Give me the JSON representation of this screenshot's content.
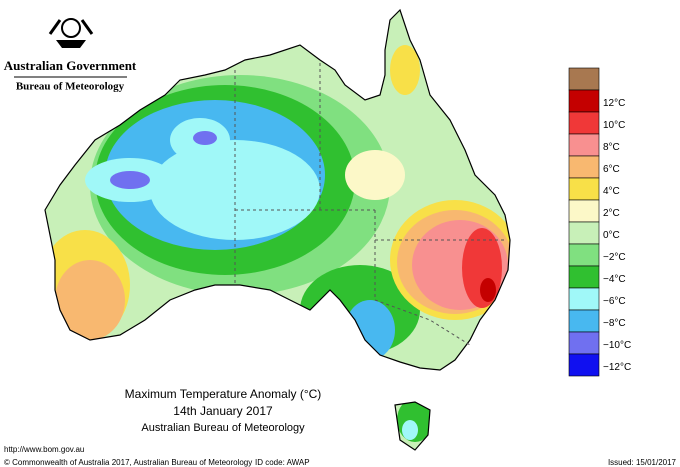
{
  "header": {
    "government": "Australian Government",
    "bureau": "Bureau of Meteorology"
  },
  "title": {
    "line1": "Maximum Temperature Anomaly (°C)",
    "line2": "14th January 2017",
    "line3": "Australian Bureau of Meteorology"
  },
  "legend": {
    "items": [
      {
        "color": "#a87850",
        "label": null
      },
      {
        "color": "#c40000",
        "label": "12°C"
      },
      {
        "color": "#f03838",
        "label": "10°C"
      },
      {
        "color": "#f89090",
        "label": "8°C"
      },
      {
        "color": "#f8b870",
        "label": "6°C"
      },
      {
        "color": "#f8e048",
        "label": "4°C"
      },
      {
        "color": "#fcf8c8",
        "label": "2°C"
      },
      {
        "color": "#c8f0b8",
        "label": "0°C"
      },
      {
        "color": "#80e080",
        "label": "−2°C"
      },
      {
        "color": "#30c030",
        "label": "−4°C"
      },
      {
        "color": "#a0f8f8",
        "label": "−6°C"
      },
      {
        "color": "#48b8f0",
        "label": "−8°C"
      },
      {
        "color": "#7070f0",
        "label": "−10°C"
      },
      {
        "color": "#1010f0",
        "label": "−12°C"
      }
    ]
  },
  "footer": {
    "url": "http://www.bom.gov.au",
    "copyright": "© Commonwealth of Australia 2017, Australian Bureau of Meteorology",
    "id_code": "ID code: AWAP",
    "issued": "Issued: 15/01/2017"
  }
}
